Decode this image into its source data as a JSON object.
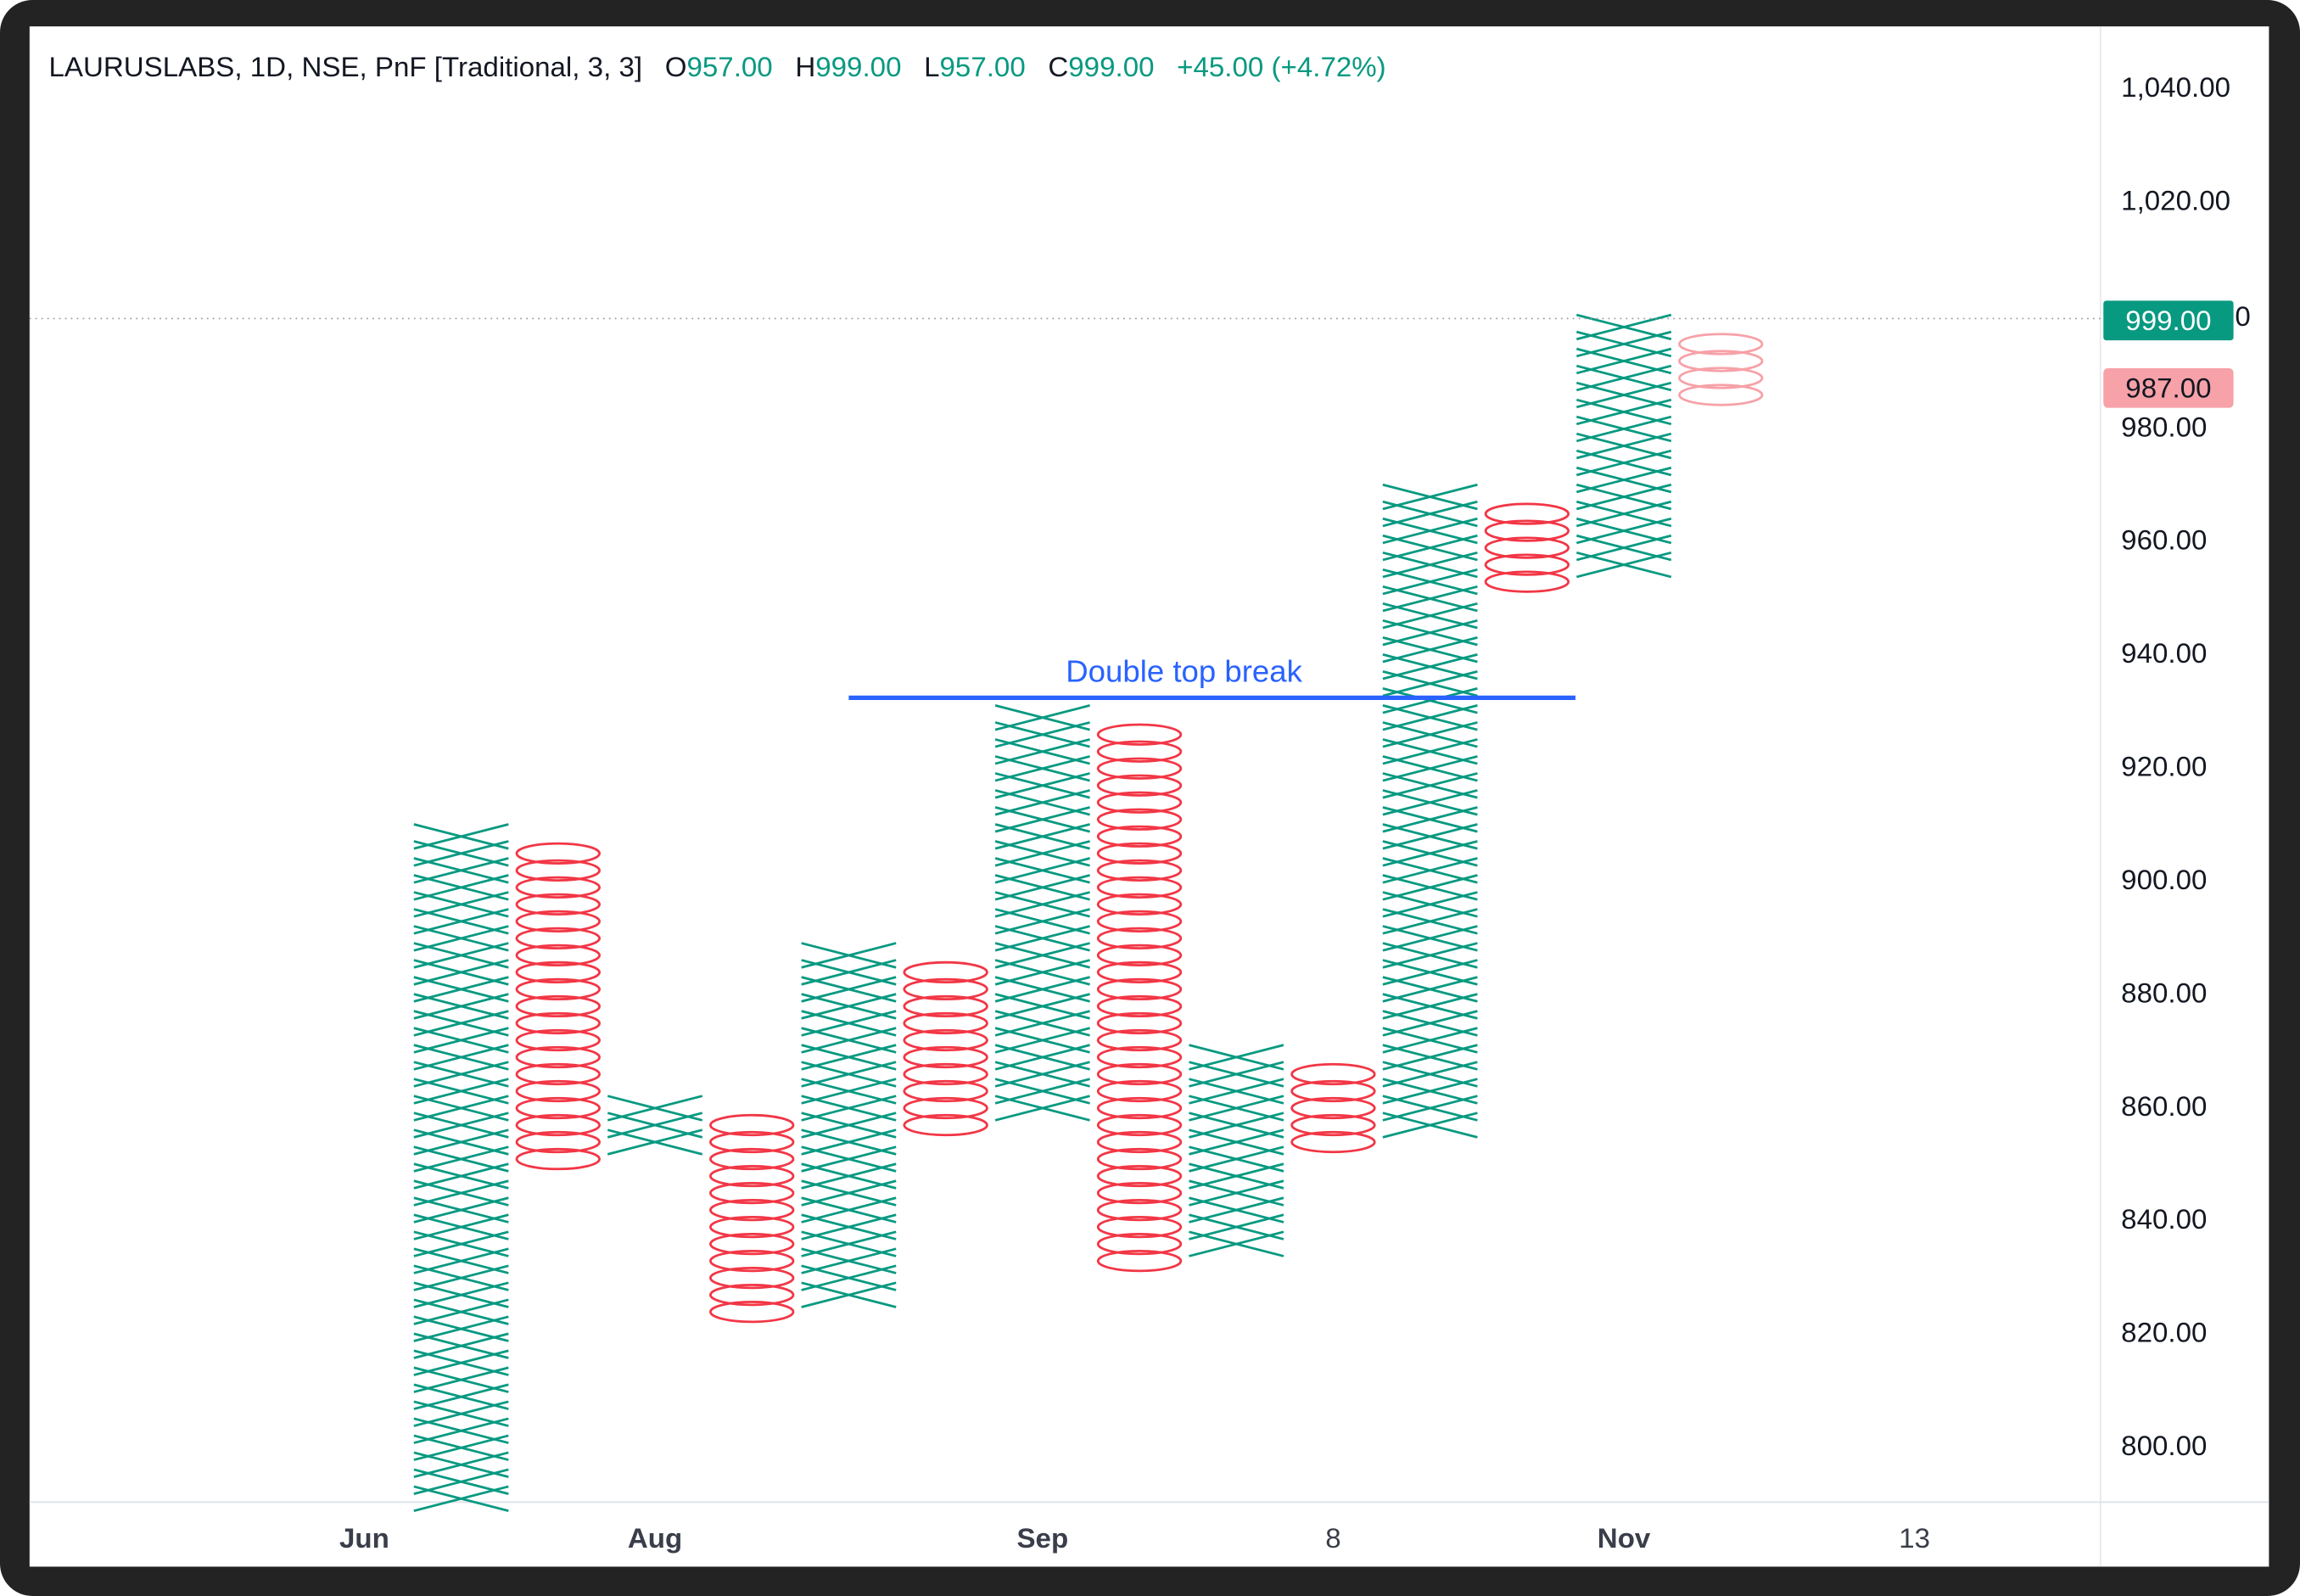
{
  "header": {
    "symbol_info": "LAURUSLABS, 1D, NSE, PnF [Traditional, 3, 3]",
    "open_label": "O",
    "open_value": "957.00",
    "high_label": "H",
    "high_value": "999.00",
    "low_label": "L",
    "low_value": "957.00",
    "close_label": "C",
    "close_value": "999.00",
    "change": "+45.00 (+4.72%)"
  },
  "colors": {
    "up": "#089981",
    "down": "#f23645",
    "pending_down": "#f7a1a8",
    "annotation": "#2962ff",
    "frame": "#232323"
  },
  "price_badges": {
    "last": "999.00",
    "reversal": "987.00"
  },
  "chart_data": {
    "type": "point-and-figure",
    "box_size": 3,
    "reversal": 3,
    "ylim": [
      791,
      1048
    ],
    "yticks": [
      "1,040.00",
      "1,020.00",
      "980.00",
      "960.00",
      "940.00",
      "920.00",
      "900.00",
      "880.00",
      "860.00",
      "840.00",
      "820.00",
      "800.00"
    ],
    "ytick_values": [
      1040,
      1020,
      980,
      960,
      940,
      920,
      900,
      880,
      860,
      840,
      820,
      800
    ],
    "hidden_tick_fragment": "0",
    "xticks": [
      {
        "label": "Jun",
        "column": -1
      },
      {
        "label": "Aug",
        "column": 2
      },
      {
        "label": "Sep",
        "column": 6
      },
      {
        "label": "8",
        "column": 9
      },
      {
        "label": "Nov",
        "column": 12
      },
      {
        "label": "13",
        "column": 15
      }
    ],
    "columns": [
      {
        "type": "X",
        "low": 789,
        "high": 909
      },
      {
        "type": "O",
        "low": 849,
        "high": 906
      },
      {
        "type": "X",
        "low": 852,
        "high": 861
      },
      {
        "type": "O",
        "low": 822,
        "high": 858
      },
      {
        "type": "X",
        "low": 825,
        "high": 888
      },
      {
        "type": "O",
        "low": 855,
        "high": 885
      },
      {
        "type": "X",
        "low": 858,
        "high": 930
      },
      {
        "type": "O",
        "low": 831,
        "high": 927
      },
      {
        "type": "X",
        "low": 834,
        "high": 870
      },
      {
        "type": "O",
        "low": 852,
        "high": 867
      },
      {
        "type": "X",
        "low": 855,
        "high": 969
      },
      {
        "type": "O",
        "low": 951,
        "high": 966
      },
      {
        "type": "X",
        "low": 954,
        "high": 999
      },
      {
        "type": "O",
        "low": 984,
        "high": 996,
        "pending": true
      }
    ],
    "last_price": 999,
    "annotation": {
      "text": "Double top break",
      "price": 932,
      "from_column": 4,
      "to_column": 11.5
    }
  }
}
